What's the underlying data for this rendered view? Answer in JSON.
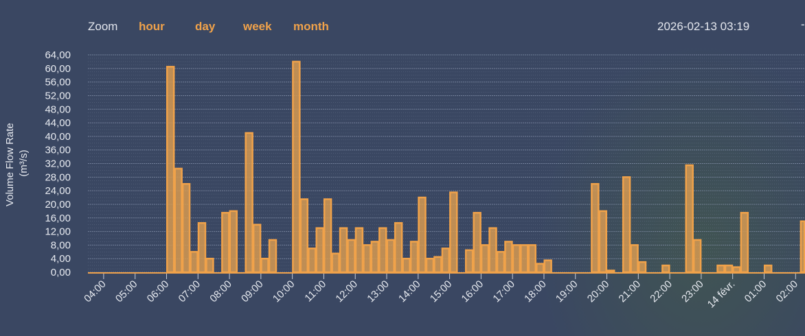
{
  "toolbar": {
    "zoom_label": "Zoom",
    "zoom_options": [
      "hour",
      "day",
      "week",
      "month"
    ],
    "datetime": "2026-02-13 03:19",
    "edge_mark": "-"
  },
  "colors": {
    "background": "#3a4762",
    "bar_fill": "#d69a52",
    "bar_stroke": "#f0a24a",
    "accent": "#f0a24a",
    "grid": "#8794ad"
  },
  "chart_data": {
    "type": "bar",
    "ylabel_line1": "Volume Flow Rate",
    "ylabel_line2": "(m³/s)",
    "ylim": [
      0,
      64
    ],
    "yticks": [
      "0,00",
      "4,00",
      "8,00",
      "12,00",
      "16,00",
      "20,00",
      "24,00",
      "28,00",
      "32,00",
      "36,00",
      "40,00",
      "44,00",
      "48,00",
      "52,00",
      "56,00",
      "60,00",
      "64,00"
    ],
    "xlim": [
      3.5,
      26.3
    ],
    "xticks": [
      {
        "label": "04:00",
        "hour": 4
      },
      {
        "label": "05:00",
        "hour": 5
      },
      {
        "label": "06:00",
        "hour": 6
      },
      {
        "label": "07:00",
        "hour": 7
      },
      {
        "label": "08:00",
        "hour": 8
      },
      {
        "label": "09:00",
        "hour": 9
      },
      {
        "label": "10:00",
        "hour": 10
      },
      {
        "label": "11:00",
        "hour": 11
      },
      {
        "label": "12:00",
        "hour": 12
      },
      {
        "label": "13:00",
        "hour": 13
      },
      {
        "label": "14:00",
        "hour": 14
      },
      {
        "label": "15:00",
        "hour": 15
      },
      {
        "label": "16:00",
        "hour": 16
      },
      {
        "label": "17:00",
        "hour": 17
      },
      {
        "label": "18:00",
        "hour": 18
      },
      {
        "label": "19:00",
        "hour": 19
      },
      {
        "label": "20:00",
        "hour": 20
      },
      {
        "label": "21:00",
        "hour": 21
      },
      {
        "label": "22:00",
        "hour": 22
      },
      {
        "label": "23:00",
        "hour": 23
      },
      {
        "label": "14 févr.",
        "hour": 24
      },
      {
        "label": "01:00",
        "hour": 25
      },
      {
        "label": "02:00",
        "hour": 26
      }
    ],
    "bin_hours": 0.25,
    "bins": [
      {
        "t": 6.0,
        "v": 60.5
      },
      {
        "t": 6.25,
        "v": 30.5
      },
      {
        "t": 6.5,
        "v": 26.0
      },
      {
        "t": 6.75,
        "v": 6.0
      },
      {
        "t": 7.0,
        "v": 14.5
      },
      {
        "t": 7.25,
        "v": 4.0
      },
      {
        "t": 7.75,
        "v": 17.5
      },
      {
        "t": 8.0,
        "v": 18.0
      },
      {
        "t": 8.5,
        "v": 41.0
      },
      {
        "t": 8.75,
        "v": 14.0
      },
      {
        "t": 9.0,
        "v": 4.0
      },
      {
        "t": 9.25,
        "v": 9.5
      },
      {
        "t": 10.0,
        "v": 62.0
      },
      {
        "t": 10.25,
        "v": 21.5
      },
      {
        "t": 10.5,
        "v": 7.0
      },
      {
        "t": 10.75,
        "v": 13.0
      },
      {
        "t": 11.0,
        "v": 21.5
      },
      {
        "t": 11.25,
        "v": 5.5
      },
      {
        "t": 11.5,
        "v": 13.0
      },
      {
        "t": 11.75,
        "v": 9.5
      },
      {
        "t": 12.0,
        "v": 13.0
      },
      {
        "t": 12.25,
        "v": 8.0
      },
      {
        "t": 12.5,
        "v": 9.0
      },
      {
        "t": 12.75,
        "v": 13.0
      },
      {
        "t": 13.0,
        "v": 9.5
      },
      {
        "t": 13.25,
        "v": 14.5
      },
      {
        "t": 13.5,
        "v": 4.0
      },
      {
        "t": 13.75,
        "v": 9.0
      },
      {
        "t": 14.0,
        "v": 22.0
      },
      {
        "t": 14.25,
        "v": 4.0
      },
      {
        "t": 14.5,
        "v": 4.5
      },
      {
        "t": 14.75,
        "v": 7.0
      },
      {
        "t": 15.0,
        "v": 23.5
      },
      {
        "t": 15.5,
        "v": 6.5
      },
      {
        "t": 15.75,
        "v": 17.5
      },
      {
        "t": 16.0,
        "v": 8.0
      },
      {
        "t": 16.25,
        "v": 13.0
      },
      {
        "t": 16.5,
        "v": 6.0
      },
      {
        "t": 16.75,
        "v": 9.0
      },
      {
        "t": 17.0,
        "v": 8.0
      },
      {
        "t": 17.25,
        "v": 8.0
      },
      {
        "t": 17.5,
        "v": 8.0
      },
      {
        "t": 17.75,
        "v": 2.5
      },
      {
        "t": 18.0,
        "v": 3.5
      },
      {
        "t": 19.5,
        "v": 26.0
      },
      {
        "t": 19.75,
        "v": 18.0
      },
      {
        "t": 20.0,
        "v": 0.5
      },
      {
        "t": 20.5,
        "v": 28.0
      },
      {
        "t": 20.75,
        "v": 8.0
      },
      {
        "t": 21.0,
        "v": 3.0
      },
      {
        "t": 21.75,
        "v": 2.0
      },
      {
        "t": 22.5,
        "v": 31.5
      },
      {
        "t": 22.75,
        "v": 9.5
      },
      {
        "t": 23.5,
        "v": 2.0
      },
      {
        "t": 23.75,
        "v": 2.0
      },
      {
        "t": 24.0,
        "v": 1.5
      },
      {
        "t": 24.25,
        "v": 17.5
      },
      {
        "t": 25.0,
        "v": 2.0
      },
      {
        "t": 26.15,
        "v": 15.0
      }
    ]
  }
}
